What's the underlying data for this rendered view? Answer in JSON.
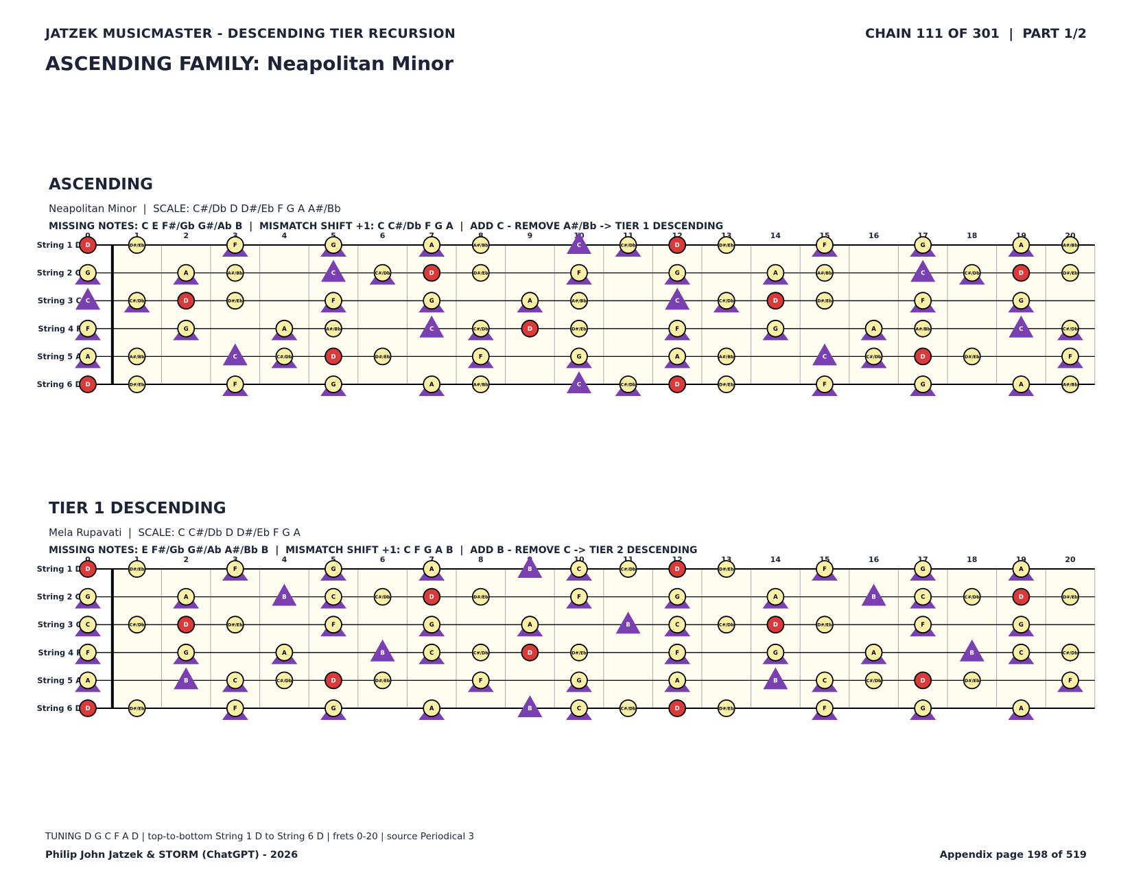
{
  "header": {
    "left": "JATZEK MUSICMASTER - DESCENDING TIER RECURSION",
    "right": "CHAIN 111 OF 301  |  PART 1/2",
    "title": "ASCENDING FAMILY: Neapolitan Minor"
  },
  "strings": [
    "String 1 D",
    "String 2 G",
    "String 3 C",
    "String 4 F",
    "String 5 A",
    "String 6 D"
  ],
  "fret_numbers": [
    "0",
    "1",
    "2",
    "3",
    "4",
    "5",
    "6",
    "7",
    "8",
    "9",
    "10",
    "11",
    "12",
    "13",
    "14",
    "15",
    "16",
    "17",
    "18",
    "19",
    "20"
  ],
  "sections": [
    {
      "title": "ASCENDING",
      "subtitle": "Neapolitan Minor  |  SCALE: C#/Db D D#/Eb F G A A#/Bb",
      "missing": "MISSING NOTES: C E F#/Gb G#/Ab B  |  MISMATCH SHIFT +1: C C#/Db F G A  |  ADD C - REMOVE A#/Bb -> TIER 1 DESCENDING",
      "board": [
        [
          "D",
          "D#/Eb",
          "",
          "F",
          "",
          "G",
          "",
          "A",
          "A#/Bb",
          "",
          "C",
          "C#/Db",
          "D",
          "D#/Eb",
          "",
          "F",
          "",
          "G",
          "",
          "A",
          "A#/Bb"
        ],
        [
          "G",
          "",
          "A",
          "A#/Bb",
          "",
          "C",
          "C#/Db",
          "D",
          "D#/Eb",
          "",
          "F",
          "",
          "G",
          "",
          "A",
          "A#/Bb",
          "",
          "C",
          "C#/Db",
          "D",
          "D#/Eb"
        ],
        [
          "C",
          "C#/Db",
          "D",
          "D#/Eb",
          "",
          "F",
          "",
          "G",
          "",
          "A",
          "A#/Bb",
          "",
          "C",
          "C#/Db",
          "D",
          "D#/Eb",
          "",
          "F",
          "",
          "G",
          ""
        ],
        [
          "F",
          "",
          "G",
          "",
          "A",
          "A#/Bb",
          "",
          "C",
          "C#/Db",
          "D",
          "D#/Eb",
          "",
          "F",
          "",
          "G",
          "",
          "A",
          "A#/Bb",
          "",
          "C",
          "C#/Db"
        ],
        [
          "A",
          "A#/Bb",
          "",
          "C",
          "C#/Db",
          "D",
          "D#/Eb",
          "",
          "F",
          "",
          "G",
          "",
          "A",
          "A#/Bb",
          "",
          "C",
          "C#/Db",
          "D",
          "D#/Eb",
          "",
          "F"
        ],
        [
          "D",
          "D#/Eb",
          "",
          "F",
          "",
          "G",
          "",
          "A",
          "A#/Bb",
          "",
          "C",
          "C#/Db",
          "D",
          "D#/Eb",
          "",
          "F",
          "",
          "G",
          "",
          "A",
          "A#/Bb"
        ]
      ],
      "shift_notes": [
        "C",
        "C#/Db",
        "F",
        "G",
        "A"
      ],
      "triangle_only_notes": [
        "C"
      ]
    },
    {
      "title": "TIER 1 DESCENDING",
      "subtitle": "Mela Rupavati  |  SCALE: C C#/Db D D#/Eb F G A",
      "missing": "MISSING NOTES: E F#/Gb G#/Ab A#/Bb B  |  MISMATCH SHIFT +1: C F G A B  |  ADD B - REMOVE C -> TIER 2 DESCENDING",
      "board": [
        [
          "D",
          "D#/Eb",
          "",
          "F",
          "",
          "G",
          "",
          "A",
          "",
          "B",
          "C",
          "C#/Db",
          "D",
          "D#/Eb",
          "",
          "F",
          "",
          "G",
          "",
          "A",
          ""
        ],
        [
          "G",
          "",
          "A",
          "",
          "B",
          "C",
          "C#/Db",
          "D",
          "D#/Eb",
          "",
          "F",
          "",
          "G",
          "",
          "A",
          "",
          "B",
          "C",
          "C#/Db",
          "D",
          "D#/Eb"
        ],
        [
          "C",
          "C#/Db",
          "D",
          "D#/Eb",
          "",
          "F",
          "",
          "G",
          "",
          "A",
          "",
          "B",
          "C",
          "C#/Db",
          "D",
          "D#/Eb",
          "",
          "F",
          "",
          "G",
          ""
        ],
        [
          "F",
          "",
          "G",
          "",
          "A",
          "",
          "B",
          "C",
          "C#/Db",
          "D",
          "D#/Eb",
          "",
          "F",
          "",
          "G",
          "",
          "A",
          "",
          "B",
          "C",
          "C#/Db"
        ],
        [
          "A",
          "",
          "B",
          "C",
          "C#/Db",
          "D",
          "D#/Eb",
          "",
          "F",
          "",
          "G",
          "",
          "A",
          "",
          "B",
          "C",
          "C#/Db",
          "D",
          "D#/Eb",
          "",
          "F"
        ],
        [
          "D",
          "D#/Eb",
          "",
          "F",
          "",
          "G",
          "",
          "A",
          "",
          "B",
          "C",
          "C#/Db",
          "D",
          "D#/Eb",
          "",
          "F",
          "",
          "G",
          "",
          "A",
          ""
        ]
      ],
      "shift_notes": [
        "C",
        "F",
        "G",
        "A",
        "B"
      ],
      "triangle_only_notes": [
        "B"
      ]
    }
  ],
  "root_note": "D",
  "colors": {
    "text": "#1c2438",
    "root": "#d93a3a",
    "note": "#fbf0a6",
    "shift": "#7a3fb0",
    "board_bg": "#fffdf0",
    "fret_line": "#aaaaaa"
  },
  "footer": {
    "note": "TUNING D G C F A D | top-to-bottom String 1 D to String 6 D | frets 0-20 | source Periodical 3",
    "left": "Philip John Jatzek & STORM (ChatGPT) - 2026",
    "right": "Appendix page 198 of 519"
  }
}
